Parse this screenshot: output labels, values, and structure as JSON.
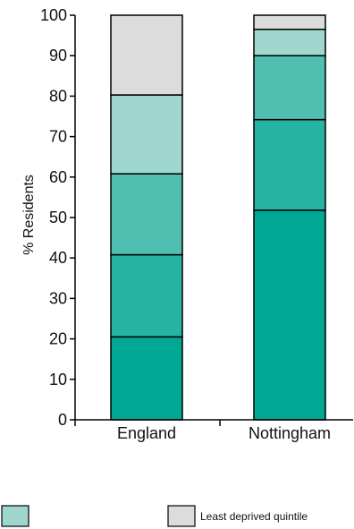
{
  "chart_data": {
    "type": "bar",
    "stacked": true,
    "ylabel": "% Residents",
    "ylim": [
      0,
      100
    ],
    "yticks": [
      0,
      10,
      20,
      30,
      40,
      50,
      60,
      70,
      80,
      90,
      100
    ],
    "categories": [
      "England",
      "Nottingham"
    ],
    "series": [
      {
        "values": [
          20.5,
          51.8
        ],
        "color": "#00a792"
      },
      {
        "values": [
          20.3,
          22.4
        ],
        "color": "#25b3a2"
      },
      {
        "values": [
          20.0,
          15.8
        ],
        "color": "#50bfb1"
      },
      {
        "values": [
          19.5,
          6.5
        ],
        "color": "#9fd7cf"
      },
      {
        "name": "Least deprived quintile",
        "values": [
          19.7,
          3.5
        ],
        "color": "#dcdcdd"
      }
    ],
    "legend": [
      {
        "label": "",
        "color": "#9fd7cf"
      },
      {
        "label": "Least deprived quintile",
        "color": "#dcdcdd"
      }
    ]
  }
}
